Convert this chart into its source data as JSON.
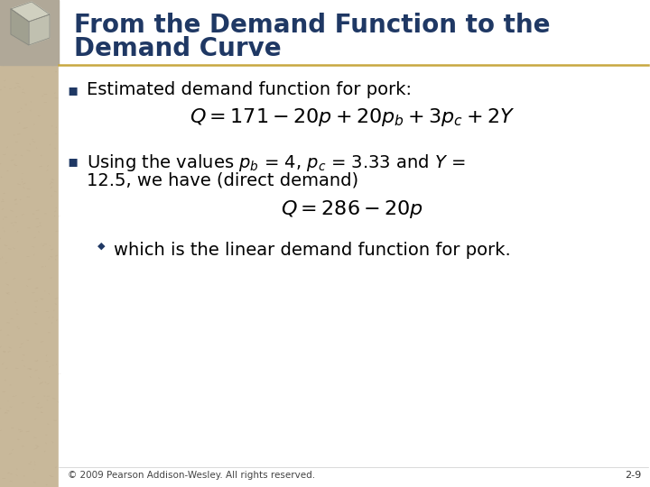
{
  "title_line1": "From the Demand Function to the",
  "title_line2": "Demand Curve",
  "title_color": "#1F3864",
  "title_fontsize": 20,
  "bg_color": "#FFFFFF",
  "left_panel_color": "#C8B89A",
  "left_strip_color": "#A89878",
  "divider_color": "#C8A840",
  "bullet1_text": "Estimated demand function for pork:",
  "bullet1_eq": "$Q = 171-20p + 20p_b + 3p_c + 2Y$",
  "bullet2_text1": "Using the values $p_b$ = 4, $p_c$ = 3.33 and $Y$ =",
  "bullet2_text2": "12.5, we have (direct demand)",
  "bullet2_eq": "$Q = 286-20p$",
  "sub_bullet_text": "which is the linear demand function for pork.",
  "footer_text": "© 2009 Pearson Addison-Wesley. All rights reserved.",
  "page_number": "2-9",
  "bullet_color": "#1F3864",
  "body_color": "#000000",
  "eq_color": "#000000",
  "body_fontsize": 14,
  "eq_fontsize": 16,
  "footer_fontsize": 7.5
}
